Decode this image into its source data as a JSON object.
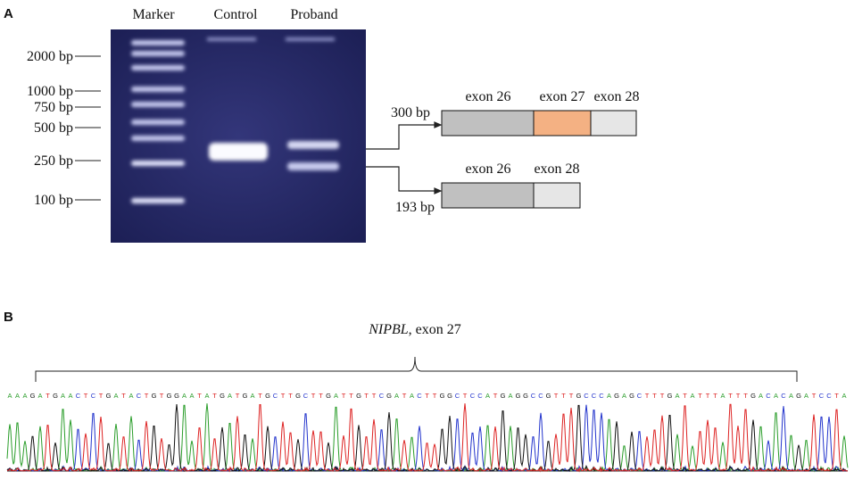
{
  "panel_a": {
    "label": "A",
    "lanes": [
      "Marker",
      "Control",
      "Proband"
    ],
    "markers": [
      "2000 bp",
      "1000 bp",
      "750 bp",
      "500 bp",
      "250 bp",
      "100 bp"
    ],
    "transcripts": [
      {
        "size": "300 bp",
        "exons": [
          "exon 26",
          "exon 27",
          "exon 28"
        ]
      },
      {
        "size": "193 bp",
        "exons": [
          "exon 26",
          "exon 28"
        ]
      }
    ]
  },
  "panel_b": {
    "label": "B",
    "gene": "NIPBL",
    "region": ", exon 27",
    "sequence": "AAAGATGAACTCTGATACTGTGGAATATGATGATGCTTGCTTGATTGTTCGATACTTGGCTCCATGAGGCCGTTTGCCCAGAGCTTTGATATTTATTTGACACAGATCCTA"
  }
}
